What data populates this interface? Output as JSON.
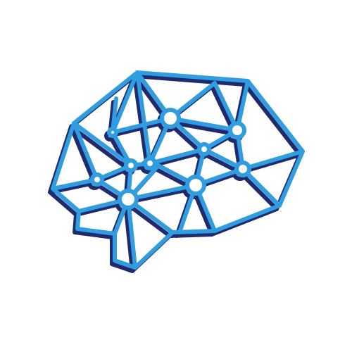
{
  "logo": {
    "icon": "brain-network-icon",
    "colors": {
      "main": "#2f9ddf",
      "shadow": "#1f2b6e",
      "background": "#ffffff"
    }
  }
}
